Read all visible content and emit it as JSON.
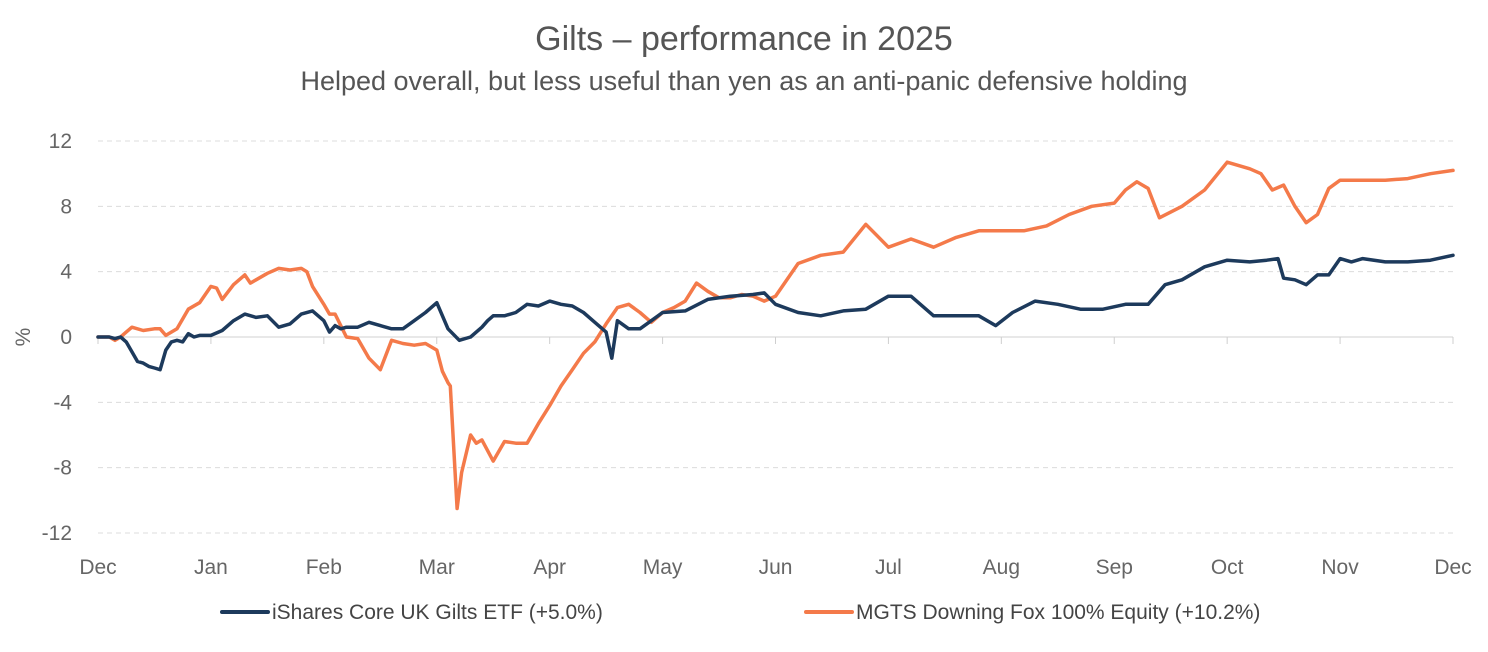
{
  "chart_data": {
    "type": "line",
    "title": "Gilts – performance in 2025",
    "subtitle": "Helped overall, but less useful than yen as an anti-panic defensive holding",
    "xlabel": "",
    "ylabel": "%",
    "ylim": [
      -12,
      12
    ],
    "yticks": [
      "12",
      "8",
      "4",
      "0",
      "-4",
      "-8",
      "-12"
    ],
    "ytick_values": [
      12,
      8,
      4,
      0,
      -4,
      -8,
      -12
    ],
    "xlim": [
      0,
      12
    ],
    "xticks": [
      "Dec",
      "Jan",
      "Feb",
      "Mar",
      "Apr",
      "May",
      "Jun",
      "Jul",
      "Aug",
      "Sep",
      "Oct",
      "Nov",
      "Dec"
    ],
    "grid": true,
    "legend_position": "bottom",
    "series": [
      {
        "name": "iShares Core UK Gilts ETF (+5.0%)",
        "color": "#1d3a5c",
        "x": [
          0,
          0.1,
          0.15,
          0.2,
          0.25,
          0.3,
          0.35,
          0.4,
          0.45,
          0.5,
          0.55,
          0.6,
          0.65,
          0.7,
          0.75,
          0.8,
          0.85,
          0.9,
          1,
          1.1,
          1.2,
          1.3,
          1.4,
          1.5,
          1.6,
          1.7,
          1.8,
          1.9,
          2,
          2.05,
          2.1,
          2.15,
          2.2,
          2.3,
          2.4,
          2.5,
          2.6,
          2.7,
          2.8,
          2.9,
          3,
          3.1,
          3.2,
          3.3,
          3.4,
          3.45,
          3.5,
          3.55,
          3.6,
          3.7,
          3.8,
          3.9,
          4,
          4.1,
          4.2,
          4.3,
          4.4,
          4.5,
          4.55,
          4.6,
          4.7,
          4.8,
          4.9,
          5,
          5.2,
          5.4,
          5.6,
          5.8,
          5.9,
          6,
          6.2,
          6.4,
          6.6,
          6.8,
          7,
          7.2,
          7.4,
          7.6,
          7.8,
          7.95,
          8.1,
          8.3,
          8.5,
          8.7,
          8.9,
          9.1,
          9.3,
          9.45,
          9.6,
          9.8,
          10,
          10.2,
          10.35,
          10.45,
          10.5,
          10.6,
          10.7,
          10.8,
          10.9,
          11,
          11.1,
          11.2,
          11.4,
          11.6,
          11.8,
          12
        ],
        "values": [
          0,
          0,
          -0.1,
          0,
          -0.3,
          -0.9,
          -1.5,
          -1.6,
          -1.8,
          -1.9,
          -2.0,
          -0.8,
          -0.3,
          -0.2,
          -0.3,
          0.2,
          0.0,
          0.1,
          0.1,
          0.4,
          1.0,
          1.4,
          1.2,
          1.3,
          0.6,
          0.8,
          1.4,
          1.6,
          1.0,
          0.3,
          0.7,
          0.5,
          0.6,
          0.6,
          0.9,
          0.7,
          0.5,
          0.5,
          1.0,
          1.5,
          2.1,
          0.5,
          -0.2,
          0.0,
          0.6,
          1.0,
          1.3,
          1.3,
          1.3,
          1.5,
          2.0,
          1.9,
          2.2,
          2.0,
          1.9,
          1.5,
          0.9,
          0.3,
          -1.3,
          1.0,
          0.5,
          0.5,
          1.0,
          1.5,
          1.6,
          2.3,
          2.5,
          2.6,
          2.7,
          2.0,
          1.5,
          1.3,
          1.6,
          1.7,
          2.5,
          2.5,
          1.3,
          1.3,
          1.3,
          0.7,
          1.5,
          2.2,
          2.0,
          1.7,
          1.7,
          2.0,
          2.0,
          3.2,
          3.5,
          4.3,
          4.7,
          4.6,
          4.7,
          4.8,
          3.6,
          3.5,
          3.2,
          3.8,
          3.8,
          4.8,
          4.6,
          4.8,
          4.6,
          4.6,
          4.7,
          5.0
        ]
      },
      {
        "name": "MGTS Downing Fox 100% Equity (+10.2%)",
        "color": "#f47a4a",
        "x": [
          0,
          0.1,
          0.15,
          0.2,
          0.25,
          0.3,
          0.4,
          0.5,
          0.55,
          0.6,
          0.7,
          0.8,
          0.9,
          1.0,
          1.05,
          1.1,
          1.2,
          1.3,
          1.35,
          1.4,
          1.5,
          1.6,
          1.7,
          1.8,
          1.85,
          1.9,
          2.0,
          2.05,
          2.1,
          2.2,
          2.3,
          2.4,
          2.5,
          2.6,
          2.7,
          2.8,
          2.9,
          3.0,
          3.05,
          3.1,
          3.12,
          3.18,
          3.22,
          3.3,
          3.35,
          3.4,
          3.5,
          3.6,
          3.7,
          3.8,
          3.9,
          4.0,
          4.1,
          4.2,
          4.3,
          4.4,
          4.5,
          4.6,
          4.7,
          4.8,
          4.9,
          5.0,
          5.1,
          5.2,
          5.3,
          5.4,
          5.5,
          5.6,
          5.7,
          5.8,
          5.9,
          6.0,
          6.2,
          6.4,
          6.6,
          6.8,
          6.9,
          7.0,
          7.2,
          7.4,
          7.6,
          7.8,
          8.0,
          8.2,
          8.4,
          8.6,
          8.8,
          9.0,
          9.1,
          9.2,
          9.3,
          9.4,
          9.6,
          9.8,
          10.0,
          10.2,
          10.3,
          10.4,
          10.5,
          10.6,
          10.7,
          10.8,
          10.9,
          11.0,
          11.2,
          11.4,
          11.6,
          11.8,
          12.0
        ],
        "values": [
          0,
          0,
          -0.2,
          0.0,
          0.3,
          0.6,
          0.4,
          0.5,
          0.5,
          0.1,
          0.5,
          1.7,
          2.1,
          3.1,
          3.0,
          2.3,
          3.2,
          3.8,
          3.3,
          3.5,
          3.9,
          4.2,
          4.1,
          4.2,
          4.0,
          3.1,
          2.0,
          1.4,
          1.4,
          0.0,
          -0.1,
          -1.3,
          -2.0,
          -0.2,
          -0.4,
          -0.5,
          -0.4,
          -0.8,
          -2.1,
          -2.8,
          -3.0,
          -10.5,
          -8.3,
          -6.0,
          -6.5,
          -6.3,
          -7.6,
          -6.4,
          -6.5,
          -6.5,
          -5.3,
          -4.2,
          -3.0,
          -2.0,
          -1.0,
          -0.3,
          0.8,
          1.8,
          2.0,
          1.5,
          0.9,
          1.5,
          1.8,
          2.2,
          3.3,
          2.8,
          2.4,
          2.4,
          2.6,
          2.5,
          2.2,
          2.5,
          4.5,
          5.0,
          5.2,
          6.9,
          6.2,
          5.5,
          6.0,
          5.5,
          6.1,
          6.5,
          6.5,
          6.5,
          6.8,
          7.5,
          8.0,
          8.2,
          9.0,
          9.5,
          9.1,
          7.3,
          8.0,
          9.0,
          10.7,
          10.3,
          10.0,
          9.0,
          9.3,
          8.0,
          7.0,
          7.5,
          9.1,
          9.6,
          9.6,
          9.6,
          9.7,
          10.0,
          10.2
        ]
      }
    ]
  }
}
